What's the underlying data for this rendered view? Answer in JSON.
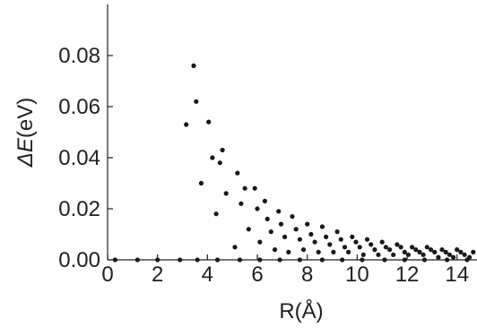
{
  "chart_data": {
    "type": "scatter",
    "title": "",
    "xlabel": "R(Å)",
    "ylabel_italic": "ΔE",
    "ylabel_unit": "(eV)",
    "xlim": [
      0,
      14.8
    ],
    "ylim": [
      0,
      0.1
    ],
    "x_ticks": [
      0,
      2,
      4,
      6,
      8,
      10,
      12,
      14
    ],
    "y_ticks": [
      0.0,
      0.02,
      0.04,
      0.06,
      0.08
    ],
    "y_tick_labels": [
      "0.00",
      "0.02",
      "0.04",
      "0.06",
      "0.08"
    ],
    "grid": false,
    "legend": "none",
    "marker_color": "#1a1a1a",
    "series": [
      {
        "values": [
          [
            0.3,
            0.0
          ],
          [
            1.2,
            0.0
          ],
          [
            2.0,
            0.0
          ],
          [
            2.9,
            0.0
          ],
          [
            3.6,
            0.0
          ],
          [
            4.4,
            0.0
          ],
          [
            5.3,
            0.0
          ],
          [
            6.1,
            0.0
          ],
          [
            6.9,
            0.0
          ],
          [
            7.7,
            0.0
          ],
          [
            8.6,
            0.0
          ],
          [
            9.4,
            0.0
          ],
          [
            10.2,
            0.0
          ],
          [
            11.1,
            0.0
          ],
          [
            11.9,
            0.0
          ],
          [
            12.7,
            0.0
          ],
          [
            13.6,
            0.0
          ],
          [
            14.4,
            0.0
          ],
          [
            3.15,
            0.053
          ],
          [
            3.45,
            0.076
          ],
          [
            3.55,
            0.062
          ],
          [
            3.75,
            0.03
          ],
          [
            4.05,
            0.054
          ],
          [
            4.2,
            0.04
          ],
          [
            4.35,
            0.018
          ],
          [
            4.5,
            0.038
          ],
          [
            4.6,
            0.043
          ],
          [
            4.75,
            0.026
          ],
          [
            5.1,
            0.005
          ],
          [
            5.2,
            0.034
          ],
          [
            5.35,
            0.022
          ],
          [
            5.5,
            0.028
          ],
          [
            5.65,
            0.012
          ],
          [
            5.9,
            0.028
          ],
          [
            6.0,
            0.02
          ],
          [
            6.1,
            0.007
          ],
          [
            6.3,
            0.023
          ],
          [
            6.4,
            0.016
          ],
          [
            6.55,
            0.011
          ],
          [
            6.7,
            0.004
          ],
          [
            6.85,
            0.019
          ],
          [
            6.95,
            0.014
          ],
          [
            7.1,
            0.009
          ],
          [
            7.25,
            0.003
          ],
          [
            7.4,
            0.017
          ],
          [
            7.55,
            0.012
          ],
          [
            7.7,
            0.008
          ],
          [
            7.85,
            0.004
          ],
          [
            8.0,
            0.014
          ],
          [
            8.15,
            0.01
          ],
          [
            8.3,
            0.007
          ],
          [
            8.45,
            0.003
          ],
          [
            8.6,
            0.013
          ],
          [
            8.75,
            0.009
          ],
          [
            8.9,
            0.006
          ],
          [
            9.05,
            0.003
          ],
          [
            9.2,
            0.011
          ],
          [
            9.35,
            0.008
          ],
          [
            9.5,
            0.005
          ],
          [
            9.65,
            0.003
          ],
          [
            9.8,
            0.009
          ],
          [
            9.95,
            0.007
          ],
          [
            10.1,
            0.005
          ],
          [
            10.25,
            0.002
          ],
          [
            10.4,
            0.008
          ],
          [
            10.55,
            0.006
          ],
          [
            10.7,
            0.004
          ],
          [
            10.85,
            0.002
          ],
          [
            11.0,
            0.007
          ],
          [
            11.15,
            0.005
          ],
          [
            11.3,
            0.004
          ],
          [
            11.45,
            0.002
          ],
          [
            11.6,
            0.006
          ],
          [
            11.75,
            0.005
          ],
          [
            11.9,
            0.003
          ],
          [
            12.05,
            0.002
          ],
          [
            12.2,
            0.005
          ],
          [
            12.35,
            0.004
          ],
          [
            12.5,
            0.003
          ],
          [
            12.65,
            0.002
          ],
          [
            12.8,
            0.005
          ],
          [
            12.95,
            0.004
          ],
          [
            13.1,
            0.003
          ],
          [
            13.25,
            0.001
          ],
          [
            13.4,
            0.004
          ],
          [
            13.55,
            0.003
          ],
          [
            13.7,
            0.002
          ],
          [
            13.85,
            0.001
          ],
          [
            14.0,
            0.004
          ],
          [
            14.15,
            0.003
          ],
          [
            14.3,
            0.002
          ],
          [
            14.5,
            0.001
          ],
          [
            14.65,
            0.003
          ]
        ]
      }
    ]
  }
}
